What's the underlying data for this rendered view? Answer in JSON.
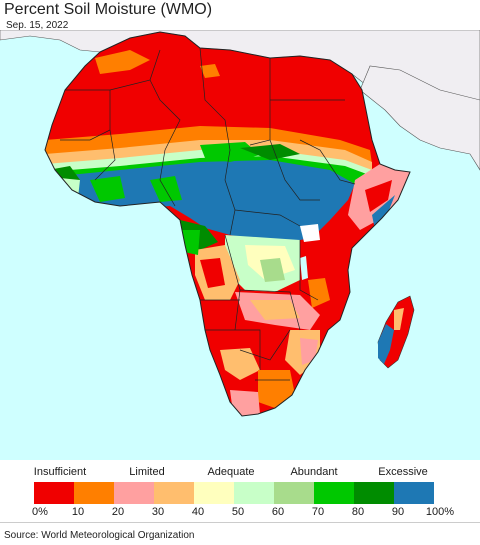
{
  "header": {
    "title": "Percent Soil Moisture (WMO)",
    "date": "Sep. 15, 2022"
  },
  "legend": {
    "categories": [
      "Insufficient",
      "Limited",
      "Adequate",
      "Abundant",
      "Excessive"
    ],
    "ticks": [
      "0%",
      "10",
      "20",
      "30",
      "40",
      "50",
      "60",
      "70",
      "80",
      "90",
      "100%"
    ],
    "colors": [
      "#f00000",
      "#ff7f00",
      "#ffa0a0",
      "#ffbe6e",
      "#ffffbe",
      "#c8ffc8",
      "#a8dc8c",
      "#00c800",
      "#008c00",
      "#1e78b4"
    ]
  },
  "footer": {
    "source": "Source: World Meteorological Organization"
  },
  "map": {
    "ocean_color": "#cfffff",
    "outside_land_color": "#f0eef2"
  }
}
